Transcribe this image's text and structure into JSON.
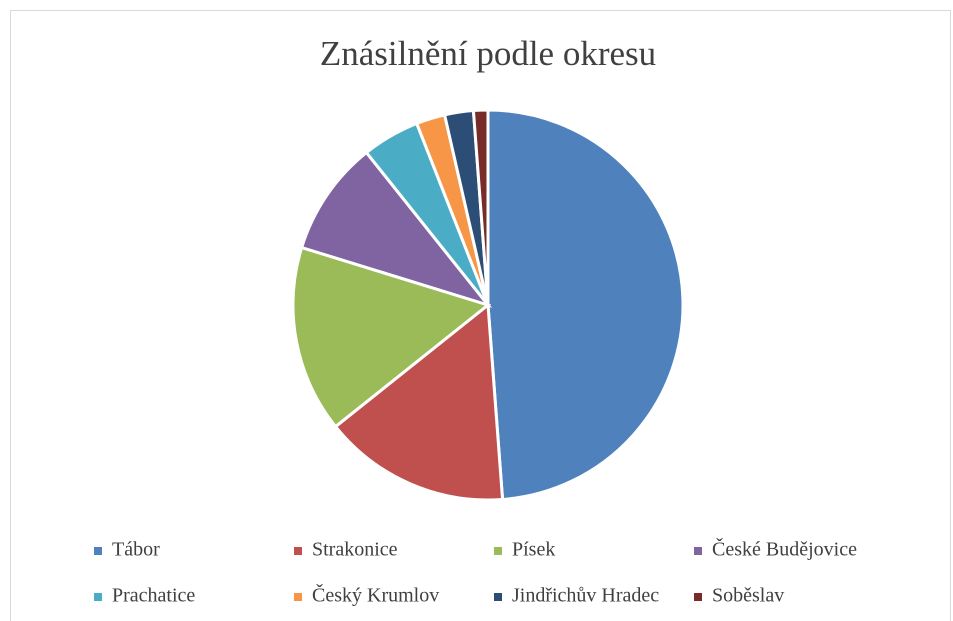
{
  "chart_data": {
    "type": "pie",
    "title": "Znásilnění podle okresu",
    "categories": [
      "Tábor",
      "Strakonice",
      "Písek",
      "České Budějovice",
      "Prachatice",
      "Český Krumlov",
      "Jindřichův Hradec",
      "Soběslav"
    ],
    "values": [
      41,
      13,
      13,
      8,
      4,
      2,
      2,
      1
    ],
    "colors": [
      "#4f81bd",
      "#c0504d",
      "#9bbb59",
      "#8064a2",
      "#4bacc6",
      "#f79646",
      "#2c4d75",
      "#772c2a"
    ],
    "legend": "bottom"
  }
}
